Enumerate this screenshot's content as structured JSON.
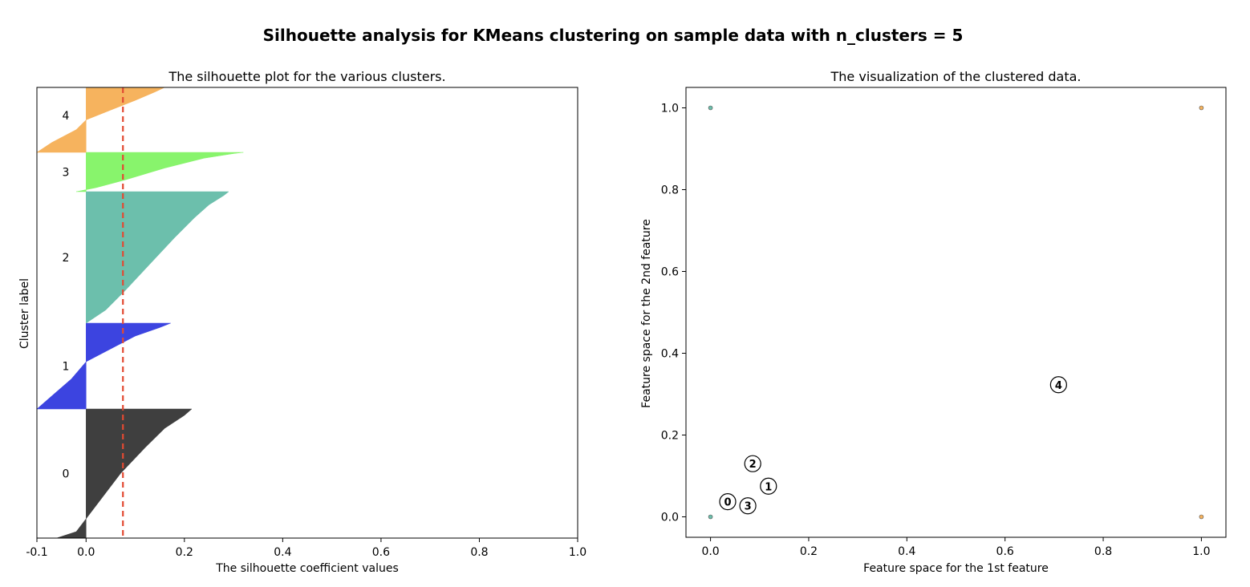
{
  "suptitle": "Silhouette analysis for KMeans clustering on sample data with n_clusters = 5",
  "chart_data": [
    {
      "type": "area",
      "title": "The silhouette plot for the various clusters.",
      "xlabel": "The silhouette coefficient values",
      "ylabel": "Cluster label",
      "xlim": [
        -0.1,
        1.0
      ],
      "xticks": [
        "-0.1",
        "0.0",
        "0.2",
        "0.4",
        "0.6",
        "0.8",
        "1.0"
      ],
      "xtick_values": [
        -0.1,
        0.0,
        0.2,
        0.4,
        0.6,
        0.8,
        1.0
      ],
      "average_silhouette_score": 0.075,
      "average_line_color": "#e24a33",
      "clusters": [
        {
          "label": "0",
          "color": "#3f3f3f",
          "profile": [
            [
              0,
              -0.06
            ],
            [
              0.05,
              -0.02
            ],
            [
              0.15,
              0.0
            ],
            [
              0.3,
              0.03
            ],
            [
              0.5,
              0.07
            ],
            [
              0.7,
              0.12
            ],
            [
              0.85,
              0.16
            ],
            [
              0.95,
              0.2
            ],
            [
              1,
              0.215
            ]
          ]
        },
        {
          "label": "1",
          "color": "#3c44e0",
          "profile": [
            [
              0,
              -0.1
            ],
            [
              0.15,
              -0.07
            ],
            [
              0.35,
              -0.03
            ],
            [
              0.55,
              0.0
            ],
            [
              0.7,
              0.05
            ],
            [
              0.85,
              0.1
            ],
            [
              0.95,
              0.15
            ],
            [
              1,
              0.172
            ]
          ]
        },
        {
          "label": "2",
          "color": "#6cbfac",
          "profile": [
            [
              0,
              0.0
            ],
            [
              0.1,
              0.04
            ],
            [
              0.25,
              0.08
            ],
            [
              0.45,
              0.13
            ],
            [
              0.65,
              0.18
            ],
            [
              0.8,
              0.22
            ],
            [
              0.9,
              0.25
            ],
            [
              0.97,
              0.28
            ],
            [
              1,
              0.29
            ]
          ]
        },
        {
          "label": "3",
          "color": "#88f46c",
          "profile": [
            [
              0,
              -0.02
            ],
            [
              0.1,
              0.02
            ],
            [
              0.3,
              0.08
            ],
            [
              0.6,
              0.16
            ],
            [
              0.85,
              0.24
            ],
            [
              0.97,
              0.3
            ],
            [
              1,
              0.32
            ]
          ]
        },
        {
          "label": "4",
          "color": "#f6b35e",
          "profile": [
            [
              0,
              -0.1
            ],
            [
              0.15,
              -0.07
            ],
            [
              0.35,
              -0.02
            ],
            [
              0.5,
              0.0
            ],
            [
              0.65,
              0.05
            ],
            [
              0.8,
              0.1
            ],
            [
              0.93,
              0.14
            ],
            [
              1,
              0.16
            ]
          ]
        }
      ]
    },
    {
      "type": "scatter",
      "title": "The visualization of the clustered data.",
      "xlabel": "Feature space for the 1st feature",
      "ylabel": "Feature space for the 2nd feature",
      "xlim": [
        -0.05,
        1.05
      ],
      "ylim": [
        -0.05,
        1.05
      ],
      "xticks": [
        "0.0",
        "0.2",
        "0.4",
        "0.6",
        "0.8",
        "1.0"
      ],
      "xtick_values": [
        0.0,
        0.2,
        0.4,
        0.6,
        0.8,
        1.0
      ],
      "yticks": [
        "0.0",
        "0.2",
        "0.4",
        "0.6",
        "0.8",
        "1.0"
      ],
      "ytick_values": [
        0.0,
        0.2,
        0.4,
        0.6,
        0.8,
        1.0
      ],
      "points": [
        {
          "x": 0.0,
          "y": 1.0,
          "color": "#6cbfac"
        },
        {
          "x": 1.0,
          "y": 1.0,
          "color": "#f6b35e"
        },
        {
          "x": 0.0,
          "y": 0.0,
          "color": "#6cbfac"
        },
        {
          "x": 1.0,
          "y": 0.0,
          "color": "#f6b35e"
        }
      ],
      "centers": [
        {
          "label": "0",
          "x": 0.035,
          "y": 0.037
        },
        {
          "label": "1",
          "x": 0.118,
          "y": 0.075
        },
        {
          "label": "2",
          "x": 0.086,
          "y": 0.13
        },
        {
          "label": "3",
          "x": 0.076,
          "y": 0.027
        },
        {
          "label": "4",
          "x": 0.709,
          "y": 0.323
        }
      ]
    }
  ]
}
